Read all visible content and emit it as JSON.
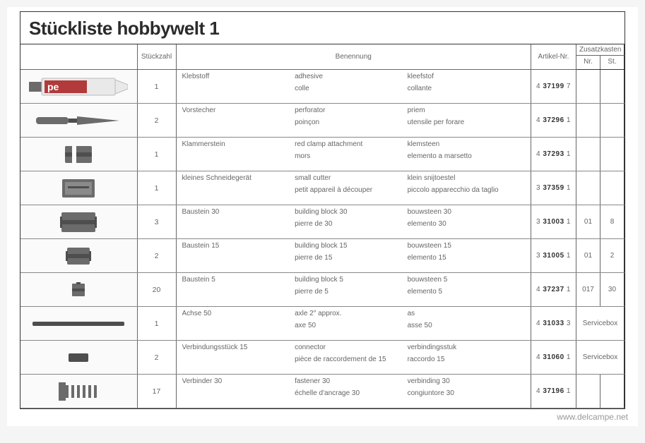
{
  "title": "Stückliste hobbywelt 1",
  "headers": {
    "qty": "Stückzahl",
    "name": "Benennung",
    "artikel": "Artikel-Nr.",
    "zusatz": "Zusatzkasten",
    "zusatz_nr": "Nr.",
    "zusatz_st": "St."
  },
  "rows": [
    {
      "img": "tube",
      "qty": "1",
      "de": "Klebstoff",
      "en": "adhesive",
      "nl": "kleefstof",
      "fr": "colle",
      "it": "collante",
      "art_pre": "4",
      "art_mid": "37199",
      "art_suf": "7",
      "nr": "",
      "st": ""
    },
    {
      "img": "awl",
      "qty": "2",
      "de": "Vorstecher",
      "en": "perforator",
      "nl": "priem",
      "fr": "poinçon",
      "it": "utensile per forare",
      "art_pre": "4",
      "art_mid": "37296",
      "art_suf": "1",
      "nr": "",
      "st": ""
    },
    {
      "img": "clamp",
      "qty": "1",
      "de": "Klammerstein",
      "en": "red clamp attachment",
      "nl": "klemsteen",
      "fr": "mors",
      "it": "elemento a marsetto",
      "art_pre": "4",
      "art_mid": "37293",
      "art_suf": "1",
      "nr": "",
      "st": ""
    },
    {
      "img": "cutter",
      "qty": "1",
      "de": "kleines Schneidegerät",
      "en": "small cutter",
      "nl": "klein snijtoestel",
      "fr": "petit appareil à découper",
      "it": "piccolo apparecchio da taglio",
      "art_pre": "3",
      "art_mid": "37359",
      "art_suf": "1",
      "nr": "",
      "st": ""
    },
    {
      "img": "b30",
      "qty": "3",
      "de": "Baustein 30",
      "en": "building block 30",
      "nl": "bouwsteen 30",
      "fr": "pierre de 30",
      "it": "elemento 30",
      "art_pre": "3",
      "art_mid": "31003",
      "art_suf": "1",
      "nr": "01",
      "st": "8"
    },
    {
      "img": "b15",
      "qty": "2",
      "de": "Baustein 15",
      "en": "building block 15",
      "nl": "bouwsteen 15",
      "fr": "pierre de 15",
      "it": "elemento 15",
      "art_pre": "3",
      "art_mid": "31005",
      "art_suf": "1",
      "nr": "01",
      "st": "2"
    },
    {
      "img": "b5",
      "qty": "20",
      "de": "Baustein 5",
      "en": "building block 5",
      "nl": "bouwsteen 5",
      "fr": "pierre de 5",
      "it": "elemento 5",
      "art_pre": "4",
      "art_mid": "37237",
      "art_suf": "1",
      "nr": "017",
      "st": "30"
    },
    {
      "img": "axle",
      "qty": "1",
      "de": "Achse 50",
      "en": "axle 2″ approx.",
      "nl": "as",
      "fr": "axe 50",
      "it": "asse 50",
      "art_pre": "4",
      "art_mid": "31033",
      "art_suf": "3",
      "servicebox": "Servicebox"
    },
    {
      "img": "conn",
      "qty": "2",
      "de": "Verbindungsstück 15",
      "en": "connector",
      "nl": "verbindingsstuk",
      "fr": "pièce de raccordement de 15",
      "it": "raccordo 15",
      "art_pre": "4",
      "art_mid": "31060",
      "art_suf": "1",
      "servicebox": "Servicebox"
    },
    {
      "img": "fast",
      "qty": "17",
      "de": "Verbinder 30",
      "en": "fastener 30",
      "nl": "verbinding 30",
      "fr": "échelle d'ancrage 30",
      "it": "congiuntore 30",
      "art_pre": "4",
      "art_mid": "37196",
      "art_suf": "1",
      "nr": "",
      "st": ""
    }
  ],
  "watermark": "www.delcampe.net",
  "colors": {
    "plastic": "#6b6b6b",
    "plastic_dark": "#4e4e4e",
    "tube_white": "#e9e9e9",
    "tube_red": "#b23a3a"
  }
}
